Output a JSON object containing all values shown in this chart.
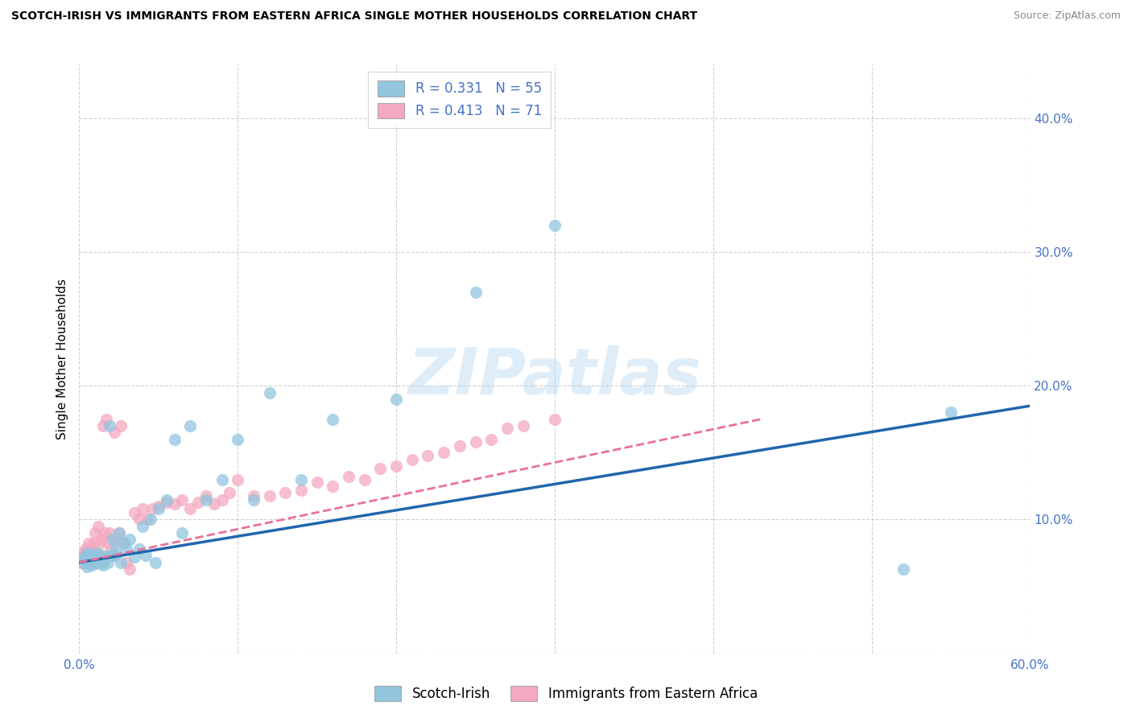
{
  "title": "SCOTCH-IRISH VS IMMIGRANTS FROM EASTERN AFRICA SINGLE MOTHER HOUSEHOLDS CORRELATION CHART",
  "source": "Source: ZipAtlas.com",
  "ylabel": "Single Mother Households",
  "xlim": [
    0.0,
    0.6
  ],
  "ylim": [
    0.0,
    0.44
  ],
  "xticks": [
    0.0,
    0.1,
    0.2,
    0.3,
    0.4,
    0.5,
    0.6
  ],
  "yticks": [
    0.0,
    0.1,
    0.2,
    0.3,
    0.4
  ],
  "x_edge_labels": [
    "0.0%",
    "60.0%"
  ],
  "ytick_labels_right": [
    "",
    "10.0%",
    "20.0%",
    "30.0%",
    "40.0%"
  ],
  "legend_label1": "R = 0.331   N = 55",
  "legend_label2": "R = 0.413   N = 71",
  "legend_bottom_label1": "Scotch-Irish",
  "legend_bottom_label2": "Immigrants from Eastern Africa",
  "color_blue": "#92c5de",
  "color_pink": "#f4a9c0",
  "color_blue_line": "#2166ac",
  "color_pink_line": "#e8729a",
  "color_axis_label": "#4472c4",
  "watermark_text": "ZIPatlas",
  "background_color": "#ffffff",
  "grid_color": "#cccccc",
  "blue_scatter_x": [
    0.002,
    0.003,
    0.004,
    0.005,
    0.005,
    0.006,
    0.007,
    0.007,
    0.008,
    0.009,
    0.01,
    0.01,
    0.011,
    0.012,
    0.012,
    0.013,
    0.014,
    0.015,
    0.015,
    0.016,
    0.017,
    0.018,
    0.019,
    0.02,
    0.021,
    0.022,
    0.023,
    0.025,
    0.026,
    0.028,
    0.03,
    0.032,
    0.035,
    0.038,
    0.04,
    0.042,
    0.045,
    0.048,
    0.05,
    0.055,
    0.06,
    0.065,
    0.07,
    0.08,
    0.09,
    0.1,
    0.11,
    0.12,
    0.14,
    0.16,
    0.2,
    0.25,
    0.3,
    0.52,
    0.55
  ],
  "blue_scatter_y": [
    0.07,
    0.068,
    0.072,
    0.065,
    0.075,
    0.068,
    0.07,
    0.073,
    0.066,
    0.069,
    0.072,
    0.067,
    0.075,
    0.068,
    0.072,
    0.07,
    0.068,
    0.073,
    0.066,
    0.07,
    0.072,
    0.068,
    0.17,
    0.073,
    0.085,
    0.073,
    0.078,
    0.09,
    0.068,
    0.083,
    0.078,
    0.085,
    0.072,
    0.078,
    0.095,
    0.073,
    0.1,
    0.068,
    0.108,
    0.115,
    0.16,
    0.09,
    0.17,
    0.115,
    0.13,
    0.16,
    0.115,
    0.195,
    0.13,
    0.175,
    0.19,
    0.27,
    0.32,
    0.063,
    0.18
  ],
  "pink_scatter_x": [
    0.001,
    0.002,
    0.002,
    0.003,
    0.003,
    0.004,
    0.004,
    0.005,
    0.005,
    0.006,
    0.006,
    0.007,
    0.007,
    0.008,
    0.008,
    0.009,
    0.009,
    0.01,
    0.01,
    0.011,
    0.012,
    0.013,
    0.014,
    0.015,
    0.016,
    0.017,
    0.018,
    0.019,
    0.02,
    0.022,
    0.024,
    0.025,
    0.026,
    0.028,
    0.03,
    0.032,
    0.035,
    0.038,
    0.04,
    0.043,
    0.046,
    0.05,
    0.055,
    0.06,
    0.065,
    0.07,
    0.075,
    0.08,
    0.085,
    0.09,
    0.095,
    0.1,
    0.11,
    0.12,
    0.13,
    0.14,
    0.15,
    0.16,
    0.17,
    0.18,
    0.19,
    0.2,
    0.21,
    0.22,
    0.23,
    0.24,
    0.25,
    0.26,
    0.27,
    0.28,
    0.3
  ],
  "pink_scatter_y": [
    0.068,
    0.07,
    0.072,
    0.068,
    0.075,
    0.07,
    0.078,
    0.068,
    0.073,
    0.072,
    0.082,
    0.07,
    0.078,
    0.068,
    0.075,
    0.073,
    0.082,
    0.07,
    0.09,
    0.075,
    0.095,
    0.082,
    0.085,
    0.17,
    0.09,
    0.175,
    0.083,
    0.09,
    0.078,
    0.165,
    0.085,
    0.09,
    0.17,
    0.082,
    0.068,
    0.063,
    0.105,
    0.1,
    0.108,
    0.1,
    0.108,
    0.11,
    0.113,
    0.112,
    0.115,
    0.108,
    0.113,
    0.118,
    0.112,
    0.115,
    0.12,
    0.13,
    0.118,
    0.118,
    0.12,
    0.122,
    0.128,
    0.125,
    0.132,
    0.13,
    0.138,
    0.14,
    0.145,
    0.148,
    0.15,
    0.155,
    0.158,
    0.16,
    0.168,
    0.17,
    0.175
  ],
  "blue_line_x": [
    0.0,
    0.6
  ],
  "blue_line_y_start": 0.068,
  "blue_line_y_end": 0.185,
  "pink_line_x": [
    0.0,
    0.43
  ],
  "pink_line_y_start": 0.068,
  "pink_line_y_end": 0.175
}
